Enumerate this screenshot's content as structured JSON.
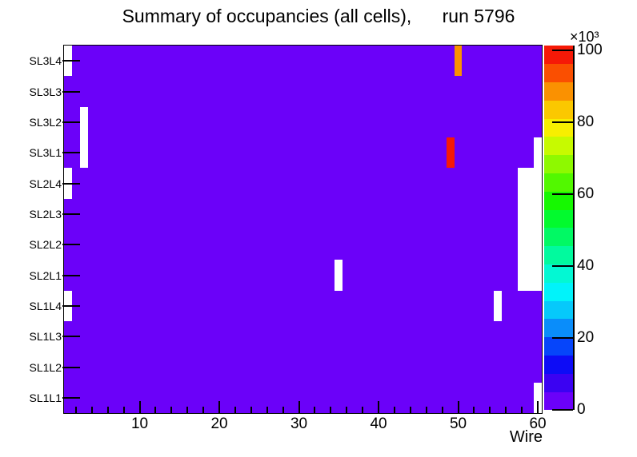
{
  "chart_data": {
    "type": "heatmap",
    "title": "Summary of occupancies (all cells),      run 5796",
    "xlabel": "Wire",
    "x_min": 0.5,
    "x_max": 60.5,
    "x_major_ticks": [
      10,
      20,
      30,
      40,
      50,
      60
    ],
    "x_minor_tick_step": 2,
    "y_categories_top_to_bottom": [
      "SL3L4",
      "SL3L3",
      "SL3L2",
      "SL3L1",
      "SL2L4",
      "SL2L3",
      "SL2L2",
      "SL2L1",
      "SL1L4",
      "SL1L3",
      "SL1L2",
      "SL1L1"
    ],
    "z_axis": {
      "scale_label": "×10³",
      "ticks": [
        0,
        20,
        40,
        60,
        80,
        100
      ],
      "max_thousands": 101.4,
      "units": "thousands"
    },
    "palette_bottom_to_top": [
      "#6b01f9",
      "#3b02f2",
      "#0d0cf6",
      "#0645fa",
      "#0a8dfa",
      "#06c9fb",
      "#01f3fa",
      "#03f8d3",
      "#01fa9e",
      "#01f964",
      "#02fa2e",
      "#16f801",
      "#52f800",
      "#8ef900",
      "#c7fa00",
      "#f7ef00",
      "#fbc800",
      "#fa9101",
      "#fa4f01",
      "#f61907"
    ],
    "background_value_thousands": 2,
    "empty_cell_color": "#ffffff",
    "empty_cells": [
      {
        "layer": "SL3L4",
        "wire_from": 1,
        "wire_to": 1
      },
      {
        "layer": "SL3L2",
        "wire_from": 3,
        "wire_to": 3
      },
      {
        "layer": "SL3L1",
        "wire_from": 3,
        "wire_to": 3
      },
      {
        "layer": "SL3L1",
        "wire_from": 60,
        "wire_to": 60
      },
      {
        "layer": "SL2L4",
        "wire_from": 1,
        "wire_to": 1
      },
      {
        "layer": "SL2L4",
        "wire_from": 58,
        "wire_to": 60
      },
      {
        "layer": "SL2L3",
        "wire_from": 58,
        "wire_to": 60
      },
      {
        "layer": "SL2L2",
        "wire_from": 58,
        "wire_to": 60
      },
      {
        "layer": "SL2L1",
        "wire_from": 35,
        "wire_to": 35
      },
      {
        "layer": "SL2L1",
        "wire_from": 58,
        "wire_to": 60
      },
      {
        "layer": "SL1L4",
        "wire_from": 1,
        "wire_to": 1
      },
      {
        "layer": "SL1L4",
        "wire_from": 55,
        "wire_to": 55
      },
      {
        "layer": "SL1L1",
        "wire_from": 60,
        "wire_to": 60
      }
    ],
    "hot_cells": [
      {
        "layer": "SL3L4",
        "wire": 50,
        "value_thousands": 90
      },
      {
        "layer": "SL3L1",
        "wire": 49,
        "value_thousands": 100
      }
    ]
  }
}
